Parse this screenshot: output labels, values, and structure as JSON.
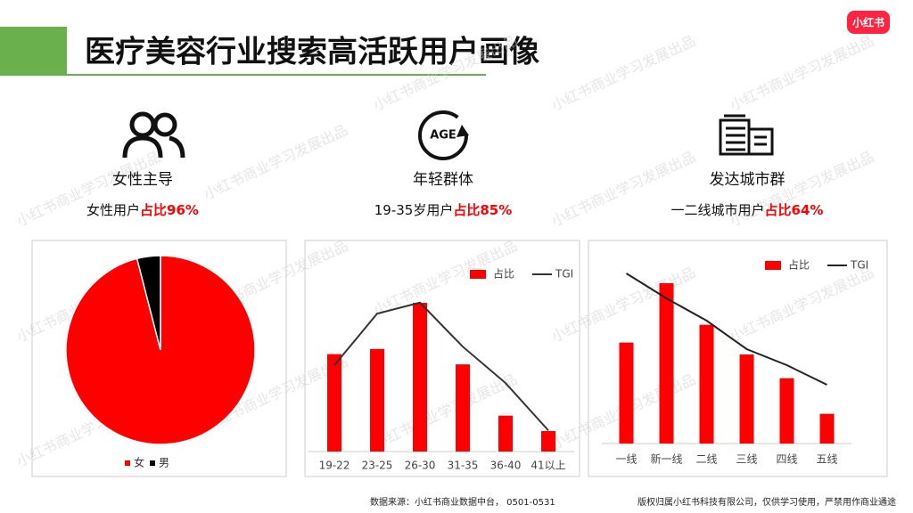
{
  "header": {
    "title": "医疗美容行业搜索高活跃用户画像",
    "logo": "小红书"
  },
  "watermark": "小红书商业学习发展出品",
  "highlights": [
    {
      "title": "女性主导",
      "prefix": "女性用户",
      "highlight": "占比96%"
    },
    {
      "title": "年轻群体",
      "prefix": "19-35岁用户",
      "highlight": "占比85%"
    },
    {
      "title": "发达城市群",
      "prefix": "一二线城市用户",
      "highlight": "占比64%"
    }
  ],
  "chart_data": [
    {
      "type": "pie",
      "categories": [
        "女",
        "男"
      ],
      "values": [
        96,
        4
      ],
      "colors": [
        "#ff0000",
        "#000000"
      ]
    },
    {
      "type": "bar_line",
      "categories": [
        "19-22",
        "23-25",
        "26-30",
        "31-35",
        "36-40",
        "41以上"
      ],
      "ylim": [
        0,
        33
      ],
      "y2lim": [
        0,
        200
      ],
      "series": [
        {
          "name": "占比",
          "color": "#ff0000",
          "values": [
            19,
            20,
            29,
            17,
            7,
            4
          ]
        },
        {
          "name": "TGI",
          "color": "#333333",
          "axis": "y2",
          "values": [
            102,
            163,
            176,
            124,
            81,
            25
          ]
        }
      ]
    },
    {
      "type": "bar_line",
      "categories": [
        "一线",
        "新一线",
        "二线",
        "三线",
        "四线",
        "五线"
      ],
      "ylim": [
        0,
        30
      ],
      "y2lim": [
        0,
        200
      ],
      "series": [
        {
          "name": "占比",
          "color": "#ff0000",
          "values": [
            17,
            27,
            20,
            15,
            11,
            5
          ]
        },
        {
          "name": "TGI",
          "color": "#222222",
          "axis": "y2",
          "values": [
            191,
            163,
            138,
            106,
            88,
            66
          ]
        }
      ]
    }
  ],
  "footer": {
    "source": "数据来源：小红书商业数据中台， 0501-0531",
    "copyright": "版权归属小红书科技有限公司，仅供学习使用，严禁用作商业通途"
  }
}
